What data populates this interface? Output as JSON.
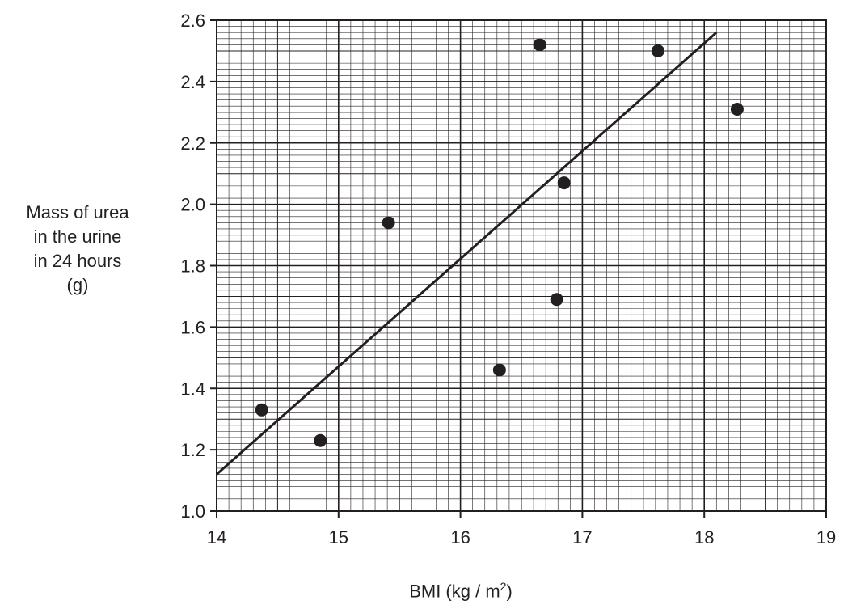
{
  "chart_data": {
    "type": "scatter",
    "title": "",
    "xlabel": "BMI (kg/m²)",
    "xlabel_parts": {
      "prefix": "BMI (kg / m",
      "sup": "2",
      "suffix": ")"
    },
    "ylabel_lines": [
      "Mass of urea",
      "in the urine",
      "in 24 hours",
      "(g)"
    ],
    "xlim": [
      14,
      19
    ],
    "ylim": [
      1.0,
      2.6
    ],
    "xticks": [
      "14",
      "15",
      "16",
      "17",
      "18",
      "19"
    ],
    "yticks": [
      "1.0",
      "1.2",
      "1.4",
      "1.6",
      "1.8",
      "2.0",
      "2.2",
      "2.4",
      "2.6"
    ],
    "grid": true,
    "points": [
      {
        "x": 14.37,
        "y": 1.33
      },
      {
        "x": 14.85,
        "y": 1.23
      },
      {
        "x": 15.41,
        "y": 1.94
      },
      {
        "x": 16.32,
        "y": 1.46
      },
      {
        "x": 16.65,
        "y": 2.52
      },
      {
        "x": 16.79,
        "y": 1.69
      },
      {
        "x": 16.85,
        "y": 2.07
      },
      {
        "x": 17.62,
        "y": 2.5
      },
      {
        "x": 18.27,
        "y": 2.31
      }
    ],
    "trendline": {
      "x1": 14.0,
      "y1": 1.12,
      "x2": 18.1,
      "y2": 2.56
    },
    "colors": {
      "ink": "#231f20",
      "grid": "#231f20"
    }
  }
}
